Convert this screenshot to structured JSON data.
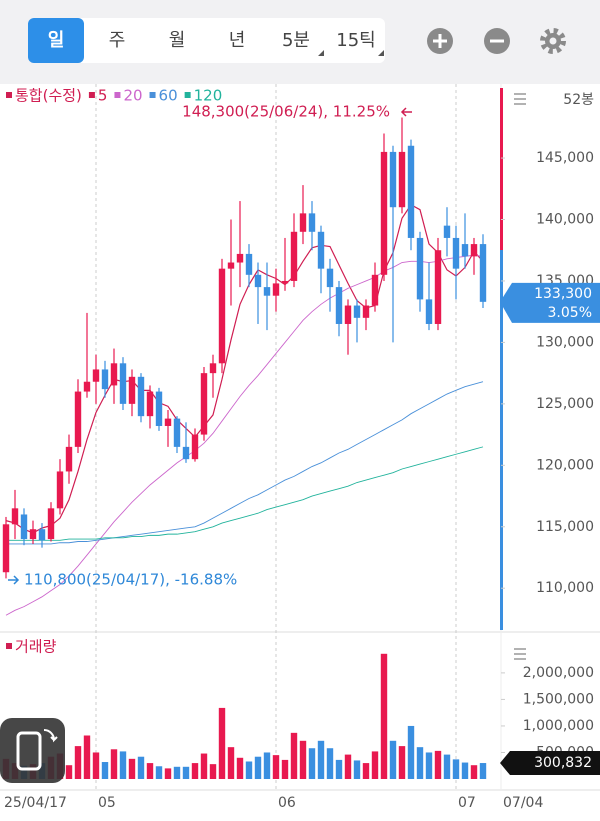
{
  "toolbar": {
    "tabs": [
      "일",
      "주",
      "월",
      "년",
      "5분",
      "15틱"
    ]
  },
  "chart_data": {
    "type": "candlestick",
    "name": "통합(수정)",
    "bars_label": "52봉",
    "up_color": "#e8194f",
    "down_color": "#3a8fe0",
    "categories": [
      "25/04/17",
      null,
      null,
      null,
      null,
      null,
      null,
      null,
      null,
      null,
      "05",
      null,
      null,
      null,
      null,
      null,
      null,
      null,
      null,
      null,
      null,
      null,
      null,
      null,
      null,
      null,
      null,
      null,
      null,
      null,
      "06",
      null,
      null,
      null,
      null,
      null,
      null,
      null,
      null,
      null,
      null,
      null,
      null,
      null,
      null,
      null,
      null,
      null,
      null,
      null,
      "07",
      null,
      null,
      null
    ],
    "date_label": "07/04",
    "open": [
      111300,
      115200,
      116000,
      114000,
      114800,
      114000,
      116500,
      119500,
      121500,
      126000,
      126800,
      127800,
      126500,
      128300,
      125000,
      127200,
      124000,
      126000,
      123200,
      123800,
      121500,
      120500,
      122500,
      127500,
      128300,
      136000,
      136500,
      137200,
      135500,
      134500,
      133800,
      134800,
      135000,
      139000,
      140500,
      139000,
      136000,
      134500,
      131500,
      133000,
      132000,
      133000,
      135500,
      145500,
      141000,
      146000,
      138500,
      133500,
      131500,
      139500,
      138500,
      138000,
      137000,
      138000
    ],
    "high": [
      115800,
      118000,
      116500,
      115500,
      115300,
      117000,
      120500,
      122500,
      127000,
      132400,
      129000,
      128500,
      129500,
      128800,
      127800,
      127500,
      126500,
      126300,
      124500,
      124000,
      123500,
      123000,
      128000,
      129000,
      136800,
      140000,
      141500,
      138000,
      136500,
      136500,
      136000,
      138500,
      140500,
      142800,
      141500,
      139500,
      136800,
      135000,
      133500,
      133500,
      133500,
      136500,
      147000,
      146000,
      148300,
      146500,
      139000,
      136500,
      138500,
      141000,
      139500,
      140500,
      138500,
      138800
    ],
    "low": [
      110800,
      114000,
      113500,
      113600,
      113300,
      113800,
      116000,
      118500,
      121000,
      125500,
      125000,
      125500,
      125000,
      124500,
      124000,
      123500,
      123000,
      122800,
      121500,
      121000,
      120200,
      120300,
      122000,
      125500,
      127500,
      133000,
      134500,
      134500,
      131500,
      131000,
      132500,
      134200,
      134500,
      138000,
      137500,
      134000,
      132500,
      130500,
      129000,
      130000,
      131000,
      132500,
      135000,
      130000,
      140500,
      137500,
      132500,
      131000,
      131000,
      137000,
      133500,
      136000,
      135500,
      132800
    ],
    "close": [
      115200,
      116500,
      114000,
      114800,
      113900,
      116500,
      119500,
      121500,
      126000,
      126800,
      127800,
      126200,
      128300,
      125000,
      127200,
      124000,
      126000,
      123200,
      123800,
      121500,
      120500,
      122500,
      127500,
      128300,
      136000,
      136500,
      137200,
      135500,
      134500,
      133800,
      134800,
      135000,
      139000,
      140500,
      139000,
      136000,
      134500,
      131500,
      133000,
      132000,
      133000,
      135500,
      145500,
      141000,
      145500,
      138500,
      133500,
      131500,
      137500,
      138500,
      136000,
      137000,
      138000,
      133300
    ],
    "series": [
      {
        "name": "5",
        "color": "#d01e52",
        "values": [
          115500,
          115300,
          114800,
          114500,
          114900,
          115100,
          115700,
          117200,
          119500,
          122100,
          124300,
          125700,
          127000,
          126800,
          126900,
          126100,
          126100,
          125100,
          124800,
          123700,
          123000,
          122300,
          123200,
          124100,
          127000,
          130200,
          133100,
          134700,
          135900,
          135500,
          135200,
          134700,
          135400,
          136600,
          137700,
          137900,
          137800,
          136300,
          134800,
          133400,
          132800,
          133000,
          135800,
          137300,
          140100,
          141200,
          140800,
          138000,
          137300,
          135900,
          135400,
          136100,
          137400,
          136600
        ]
      },
      {
        "name": "20",
        "color": "#cc66cc",
        "values": [
          107800,
          108200,
          108500,
          108900,
          109300,
          109800,
          110300,
          111000,
          111800,
          112700,
          113600,
          114500,
          115400,
          116200,
          117000,
          117700,
          118400,
          119000,
          119600,
          120200,
          120700,
          121200,
          121800,
          122600,
          123600,
          124600,
          125600,
          126500,
          127300,
          128200,
          129100,
          130000,
          130900,
          131800,
          132500,
          133100,
          133600,
          134000,
          134400,
          134700,
          135000,
          135300,
          135800,
          136100,
          136500,
          136600,
          136600,
          136500,
          136600,
          136800,
          136900,
          137000,
          137100,
          137000
        ]
      },
      {
        "name": "60",
        "color": "#4a90d9",
        "values": [
          113600,
          113600,
          113600,
          113600,
          113600,
          113600,
          113700,
          113700,
          113800,
          113800,
          113900,
          114000,
          114100,
          114200,
          114300,
          114400,
          114500,
          114600,
          114700,
          114800,
          114900,
          115000,
          115300,
          115700,
          116100,
          116500,
          116900,
          117300,
          117600,
          118000,
          118400,
          118800,
          119100,
          119500,
          119900,
          120200,
          120600,
          121000,
          121300,
          121700,
          122100,
          122500,
          122900,
          123300,
          123700,
          124200,
          124600,
          125000,
          125400,
          125800,
          126100,
          126400,
          126600,
          126800
        ]
      },
      {
        "name": "120",
        "color": "#22b39c",
        "values": [
          113900,
          113900,
          113900,
          113900,
          113900,
          113900,
          113900,
          114000,
          114000,
          114000,
          114000,
          114100,
          114100,
          114100,
          114200,
          114200,
          114300,
          114300,
          114400,
          114400,
          114500,
          114600,
          114800,
          115000,
          115300,
          115500,
          115700,
          115900,
          116100,
          116400,
          116600,
          116800,
          117000,
          117200,
          117500,
          117700,
          117900,
          118100,
          118300,
          118600,
          118800,
          119000,
          119200,
          119400,
          119700,
          119900,
          120100,
          120300,
          120500,
          120700,
          120900,
          121100,
          121300,
          121500
        ]
      }
    ],
    "ylim": [
      106600,
      150700
    ],
    "yticks": [
      {
        "value": 110000,
        "label": "110,000"
      },
      {
        "value": 115000,
        "label": "115,000"
      },
      {
        "value": 120000,
        "label": "120,000"
      },
      {
        "value": 125000,
        "label": "125,000"
      },
      {
        "value": 130000,
        "label": "130,000"
      },
      {
        "value": 135000,
        "label": "135,000"
      },
      {
        "value": 140000,
        "label": "140,000"
      },
      {
        "value": 145000,
        "label": "145,000"
      }
    ],
    "high_annotation": "148,300(25/06/24), 11.25%",
    "low_annotation": "110,800(25/04/17), -16.88%",
    "current_price": {
      "value": 133300,
      "label": "133,300"
    },
    "current_change": {
      "value": 3.05,
      "label": "3.05%"
    },
    "volume": {
      "title": "거래량",
      "values": [
        380000,
        300000,
        250000,
        280000,
        300000,
        420000,
        480000,
        260000,
        620000,
        820000,
        500000,
        320000,
        560000,
        520000,
        380000,
        420000,
        300000,
        240000,
        200000,
        230000,
        230000,
        300000,
        480000,
        280000,
        1340000,
        600000,
        400000,
        330000,
        420000,
        500000,
        450000,
        360000,
        870000,
        720000,
        580000,
        720000,
        580000,
        360000,
        460000,
        350000,
        300000,
        520000,
        2360000,
        720000,
        620000,
        1000000,
        600000,
        500000,
        530000,
        460000,
        370000,
        310000,
        260000,
        300832
      ],
      "ylim": [
        0,
        2620000
      ],
      "yticks": [
        {
          "value": 500000,
          "label": "500,000"
        },
        {
          "value": 1000000,
          "label": "1,000,000"
        },
        {
          "value": 1500000,
          "label": "1,500,000"
        },
        {
          "value": 2000000,
          "label": "2,000,000"
        }
      ],
      "current": {
        "value": 300832,
        "label": "300,832"
      }
    }
  }
}
